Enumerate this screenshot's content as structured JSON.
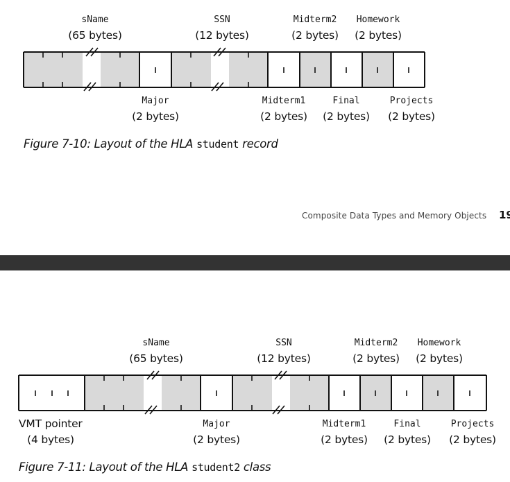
{
  "figure1": {
    "labels_top": [
      {
        "name": "sName",
        "size": "(65 bytes)"
      },
      {
        "name": "SSN",
        "size": "(12 bytes)"
      },
      {
        "name": "Midterm2",
        "size": "(2 bytes)"
      },
      {
        "name": "Homework",
        "size": "(2 bytes)"
      }
    ],
    "labels_bottom": [
      {
        "name": "Major",
        "size": "(2 bytes)"
      },
      {
        "name": "Midterm1",
        "size": "(2 bytes)"
      },
      {
        "name": "Final",
        "size": "(2 bytes)"
      },
      {
        "name": "Projects",
        "size": "(2 bytes)"
      }
    ],
    "caption_prefix": "Figure 7-10: Layout of the HLA ",
    "caption_code": "student",
    "caption_suffix": " record"
  },
  "footer": {
    "text": "Composite Data Types and Memory Objects",
    "page_number": "19"
  },
  "figure2": {
    "labels_top": [
      {
        "name": "sName",
        "size": "(65 bytes)"
      },
      {
        "name": "SSN",
        "size": "(12 bytes)"
      },
      {
        "name": "Midterm2",
        "size": "(2 bytes)"
      },
      {
        "name": "Homework",
        "size": "(2 bytes)"
      }
    ],
    "labels_bottom": [
      {
        "name": "VMT pointer",
        "size": "(4 bytes)"
      },
      {
        "name": "Major",
        "size": "(2 bytes)"
      },
      {
        "name": "Midterm1",
        "size": "(2 bytes)"
      },
      {
        "name": "Final",
        "size": "(2 bytes)"
      },
      {
        "name": "Projects",
        "size": "(2 bytes)"
      }
    ],
    "caption_prefix": "Figure 7-11: Layout of the HLA ",
    "caption_code": "student2",
    "caption_suffix": " class"
  },
  "colors": {
    "shade": "#d9d9d9",
    "band": "#333333",
    "line": "#111111"
  }
}
